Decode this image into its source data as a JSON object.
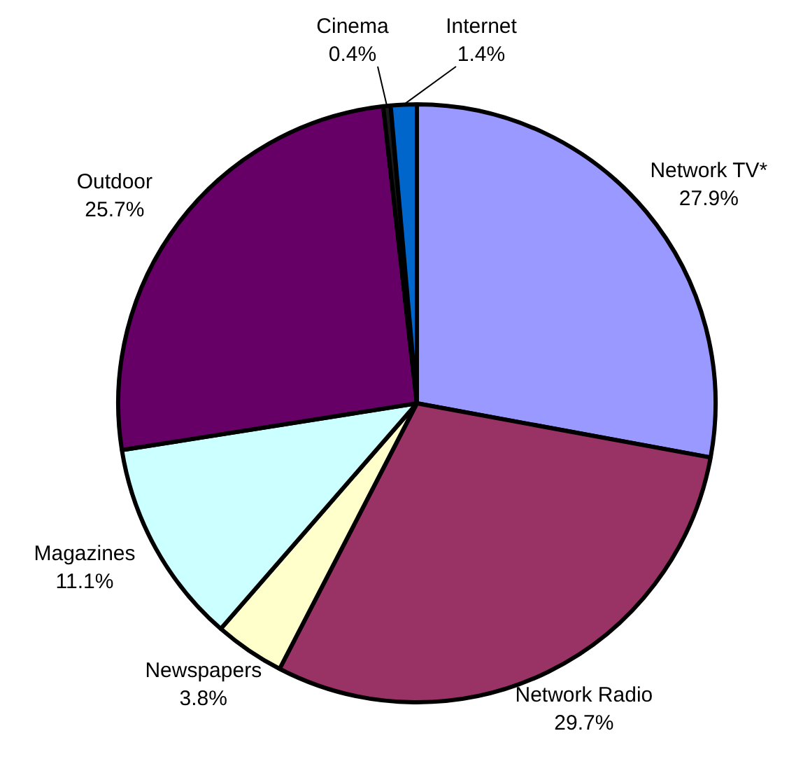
{
  "chart_data": {
    "type": "pie",
    "categories": [
      "Network TV*",
      "Network Radio",
      "Newspapers",
      "Magazines",
      "Outdoor",
      "Cinema",
      "Internet"
    ],
    "values": [
      27.9,
      29.7,
      3.8,
      11.1,
      25.7,
      0.4,
      1.4
    ],
    "colors": [
      "#9999ff",
      "#993366",
      "#ffffcc",
      "#ccffff",
      "#660066",
      "#1a1a1a",
      "#0066cc"
    ],
    "value_labels": [
      "27.9%",
      "29.7%",
      "3.8%",
      "11.1%",
      "25.7%",
      "0.4%",
      "1.4%"
    ],
    "legend": false
  }
}
